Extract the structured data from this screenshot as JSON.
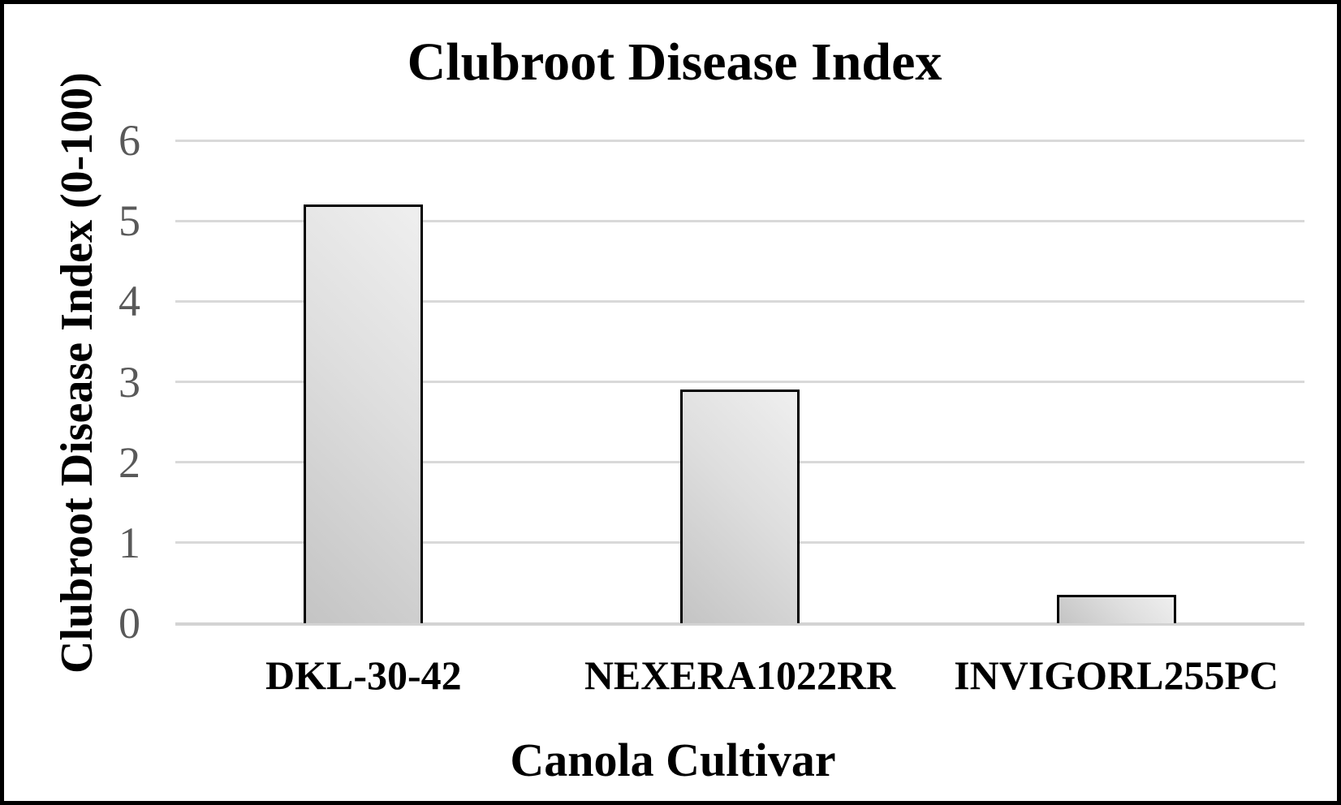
{
  "chart_data": {
    "type": "bar",
    "title": "Clubroot Disease Index",
    "xlabel": "Canola Cultivar",
    "ylabel": "Clubroot Disease Index (0-100)",
    "categories": [
      "DKL-30-42",
      "NEXERA1022RR",
      "INVIGORL255PC"
    ],
    "values": [
      5.2,
      2.9,
      0.35
    ],
    "yticks": [
      0,
      1,
      2,
      3,
      4,
      5,
      6
    ],
    "ylim": [
      0,
      6
    ],
    "grid": true,
    "legend": false,
    "colors": {
      "bar_fill_light": "#efefef",
      "bar_fill_dark": "#c4c4c4",
      "bar_border": "#000000",
      "gridline": "#d9d9d9",
      "tick_label": "#595959",
      "text": "#000000",
      "frame_border": "#000000",
      "background": "#ffffff"
    }
  }
}
